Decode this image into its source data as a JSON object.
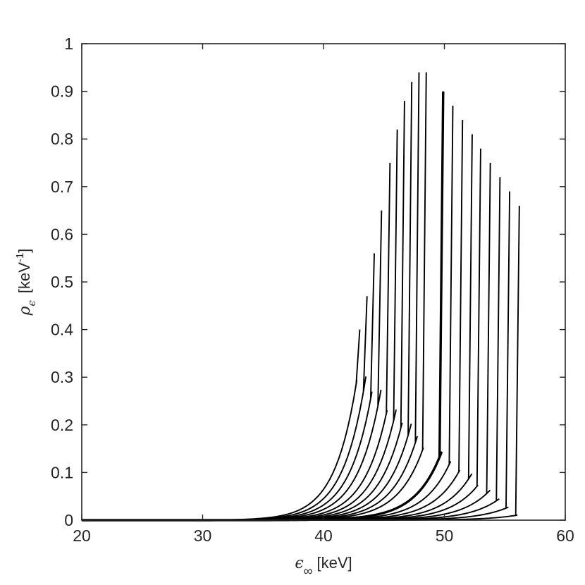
{
  "chart_data": {
    "type": "line",
    "xlabel": {
      "symbol": "ϵ",
      "subscript": "∞",
      "unit": "[keV]"
    },
    "ylabel": {
      "symbol": "ρ",
      "subscript": "ϵ",
      "unit": "[keV",
      "superscript": "-1",
      "close": "]"
    },
    "xlim": [
      20,
      60
    ],
    "ylim": [
      0,
      1
    ],
    "xticks": [
      20,
      30,
      40,
      50,
      60
    ],
    "yticks": [
      0,
      0.1,
      0.2,
      0.3,
      0.4,
      0.5,
      0.6,
      0.7,
      0.8,
      0.9,
      1
    ],
    "ytick_labels": [
      "0",
      "0.1",
      "0.2",
      "0.3",
      "0.4",
      "0.5",
      "0.6",
      "0.7",
      "0.8",
      "0.9",
      "1"
    ],
    "xtick_labels": [
      "20",
      "30",
      "40",
      "50",
      "60"
    ],
    "grid": false,
    "legend": "none",
    "line_color": "#000000",
    "highlighted_series_index": 10,
    "series": [
      {
        "end_x": 43.0,
        "peak": 0.4
      },
      {
        "end_x": 43.6,
        "peak": 0.47
      },
      {
        "end_x": 44.2,
        "peak": 0.56
      },
      {
        "end_x": 44.8,
        "peak": 0.65
      },
      {
        "end_x": 45.5,
        "peak": 0.75
      },
      {
        "end_x": 46.1,
        "peak": 0.82
      },
      {
        "end_x": 46.7,
        "peak": 0.88
      },
      {
        "end_x": 47.3,
        "peak": 0.92
      },
      {
        "end_x": 47.9,
        "peak": 0.94
      },
      {
        "end_x": 48.5,
        "peak": 0.94
      },
      {
        "end_x": 49.9,
        "peak": 0.9
      },
      {
        "end_x": 50.7,
        "peak": 0.87
      },
      {
        "end_x": 51.5,
        "peak": 0.84
      },
      {
        "end_x": 52.3,
        "peak": 0.81
      },
      {
        "end_x": 53.0,
        "peak": 0.78
      },
      {
        "end_x": 53.8,
        "peak": 0.75
      },
      {
        "end_x": 54.6,
        "peak": 0.72
      },
      {
        "end_x": 55.4,
        "peak": 0.69
      },
      {
        "end_x": 56.2,
        "peak": 0.66
      }
    ]
  }
}
